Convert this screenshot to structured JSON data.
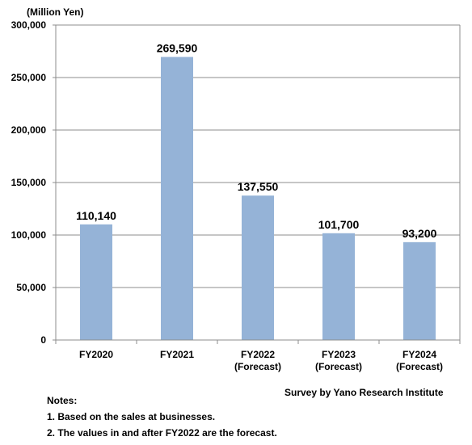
{
  "chart_data": {
    "type": "bar",
    "unit_label": "(Million Yen)",
    "categories": [
      [
        "FY2020"
      ],
      [
        "FY2021"
      ],
      [
        "FY2022",
        "(Forecast)"
      ],
      [
        "FY2023",
        "(Forecast)"
      ],
      [
        "FY2024",
        "(Forecast)"
      ]
    ],
    "values": [
      110140,
      269590,
      137550,
      101700,
      93200
    ],
    "value_labels": [
      "110,140",
      "269,590",
      "137,550",
      "101,700",
      "93,200"
    ],
    "ylim": [
      0,
      300000
    ],
    "yticks": [
      0,
      50000,
      100000,
      150000,
      200000,
      250000,
      300000
    ],
    "ytick_labels": [
      "0",
      "50,000",
      "100,000",
      "150,000",
      "200,000",
      "250,000",
      "300,000"
    ],
    "grid": true,
    "bar_color": "#95B3D7",
    "grid_color": "#8C8C8C"
  },
  "source": "Survey by Yano Research Institute",
  "notes": {
    "title": "Notes:",
    "items": [
      "1. Based on the sales at businesses.",
      "2. The values in and after FY2022 are the forecast."
    ]
  }
}
